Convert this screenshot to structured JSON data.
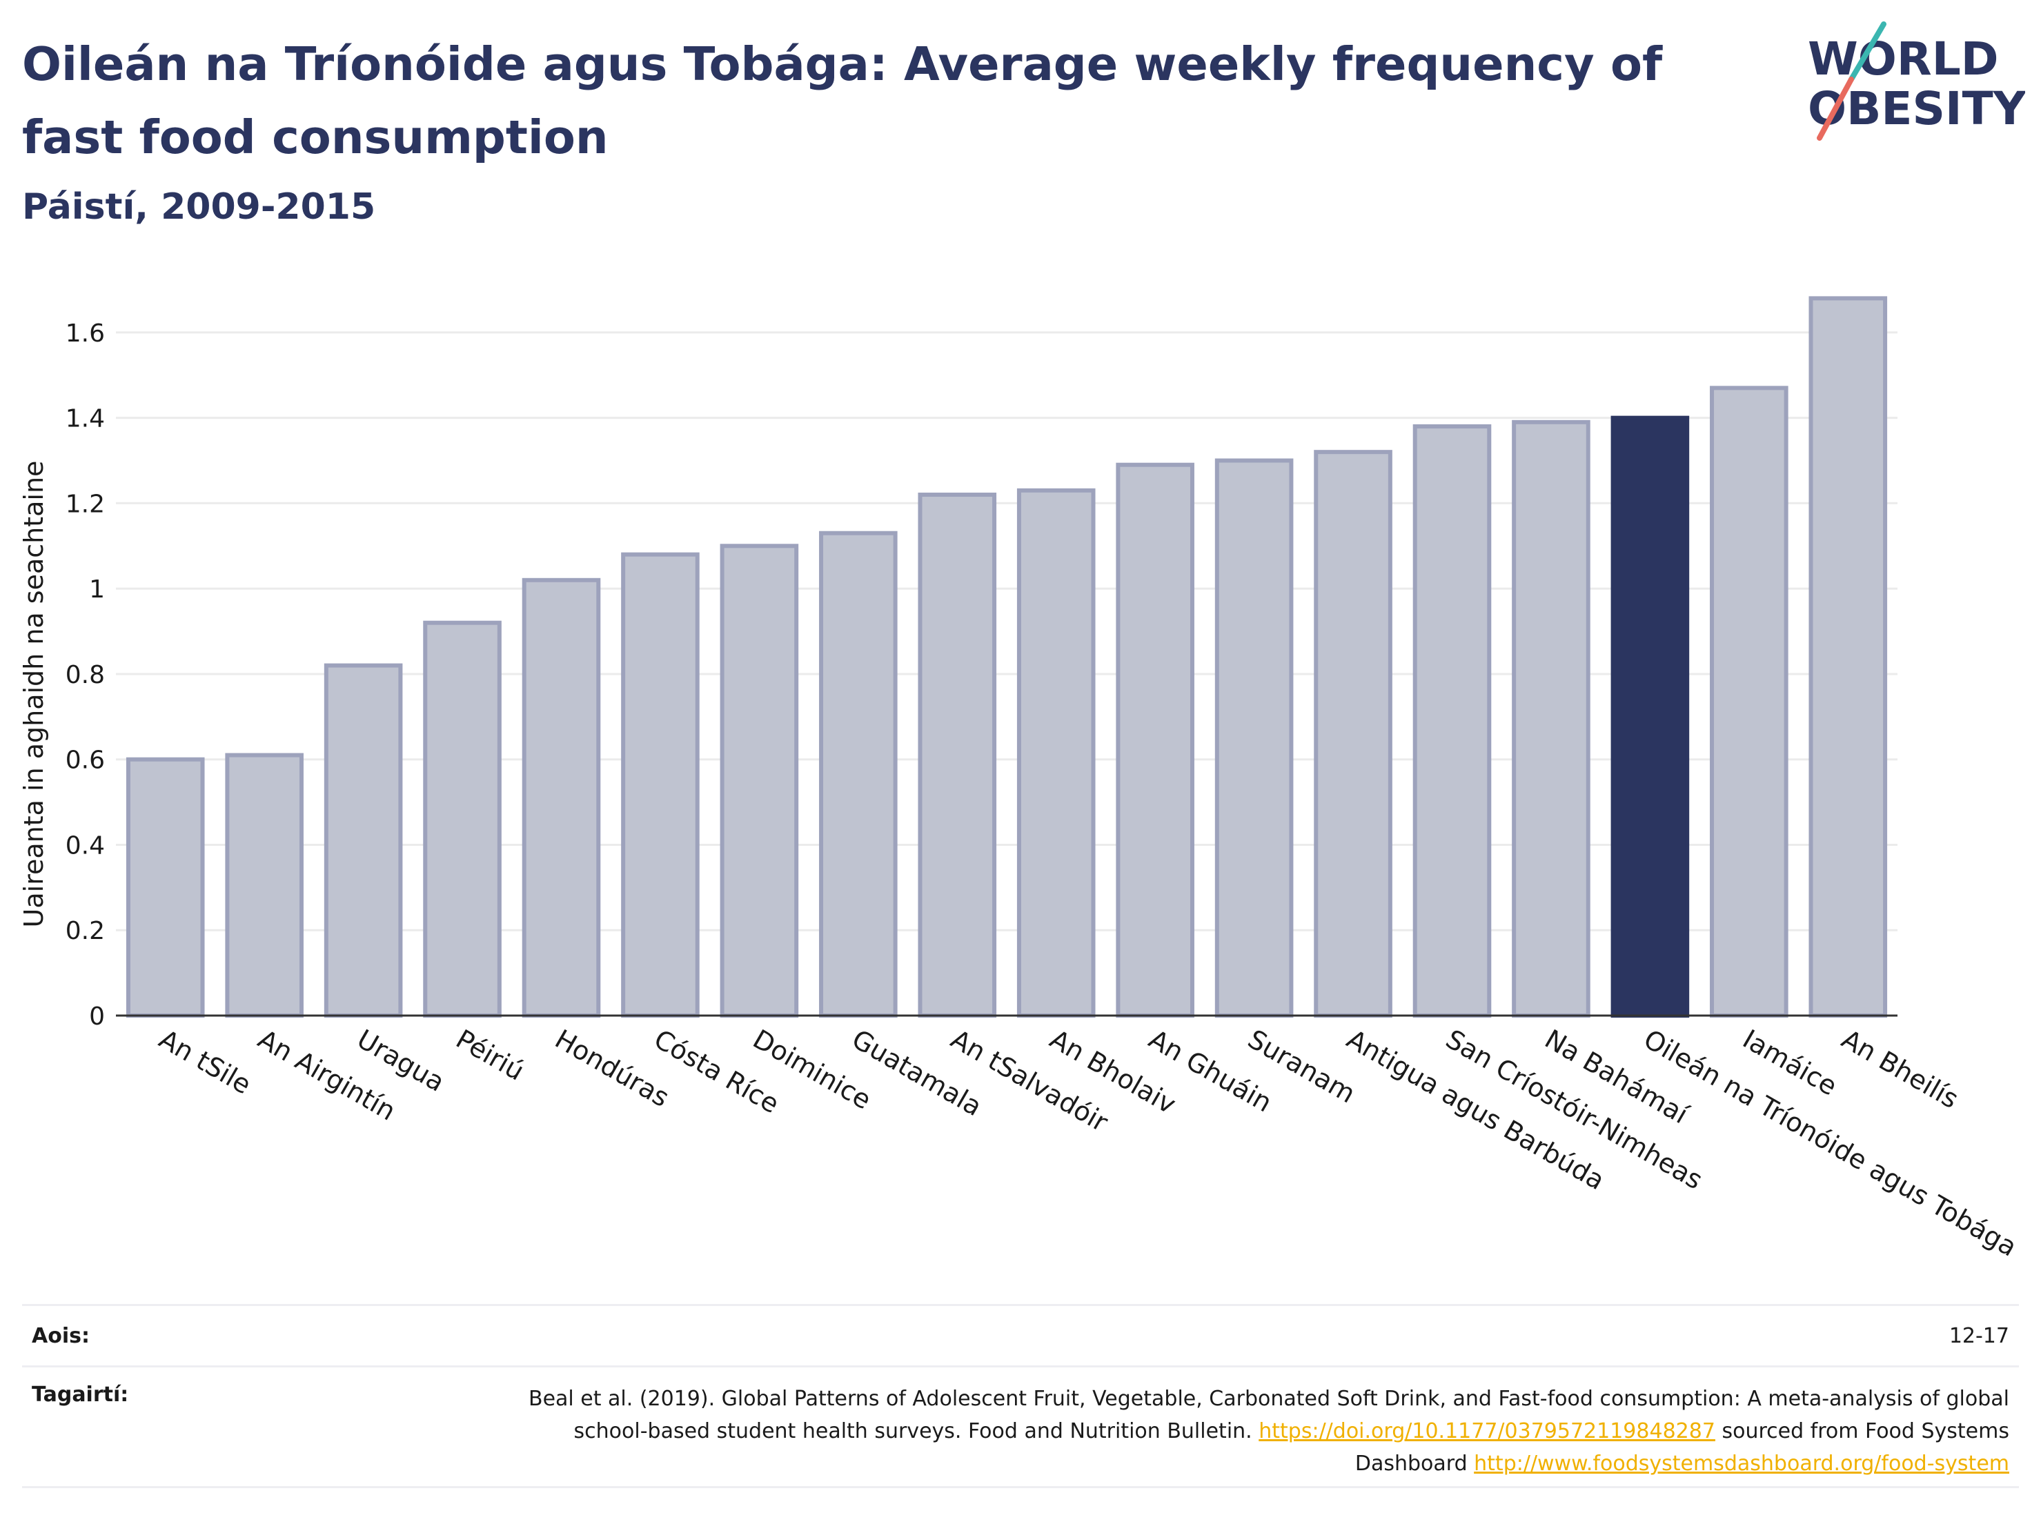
{
  "header": {
    "title": "Oileán na Tríonóide agus Tobága: Average weekly frequency of fast food consumption",
    "subtitle": "Páistí, 2009-2015"
  },
  "logo": {
    "line1": "WORLD",
    "line2": "OBESITY"
  },
  "chart_data": {
    "type": "bar",
    "title": "Oileán na Tríonóide agus Tobága: Average weekly frequency of fast food consumption",
    "subtitle": "Páistí, 2009-2015",
    "ylabel": "Uaireanta in aghaidh na seachtaine",
    "xlabel": "",
    "ylim": [
      0,
      1.7
    ],
    "yticks": [
      0,
      0.2,
      0.4,
      0.6,
      0.8,
      1,
      1.2,
      1.4,
      1.6
    ],
    "ytick_labels": [
      "0",
      "0.2",
      "0.4",
      "0.6",
      "0.8",
      "1",
      "1.2",
      "1.4",
      "1.6"
    ],
    "grid": true,
    "categories": [
      "An tSile",
      "An Airgintín",
      "Uragua",
      "Péiriú",
      "Hondúras",
      "Cósta Ríce",
      "Doiminice",
      "Guatamala",
      "An tSalvadóir",
      "An Bholaiv",
      "An Ghuáin",
      "Suranam",
      "Antigua agus Barbúda",
      "San Críostóir-Nimheas",
      "Na Bahámaí",
      "Oileán na Tríonóide agus Tobága",
      "Iamáice",
      "An Bheilís"
    ],
    "values": [
      0.6,
      0.61,
      0.82,
      0.92,
      1.02,
      1.08,
      1.1,
      1.13,
      1.22,
      1.23,
      1.29,
      1.3,
      1.32,
      1.38,
      1.39,
      1.4,
      1.47,
      1.68
    ],
    "highlight_index": 15,
    "colors": {
      "bar": "#bfc3d0",
      "bar_edge": "#9da2bc",
      "highlight": "#2b3560",
      "grid": "#ebebeb",
      "axis": "#333333"
    }
  },
  "footer": {
    "age_label": "Aois:",
    "age_value": "12-17",
    "ref_label": "Tagairtí:",
    "ref_text_1": "Beal et al. (2019). Global Patterns of Adolescent Fruit, Vegetable, Carbonated Soft Drink, and Fast-food consumption: A meta-analysis of global school-based student health surveys. Food and Nutrition Bulletin. ",
    "ref_link_1": "https://doi.org/10.1177/0379572119848287",
    "ref_text_2": " sourced from Food Systems Dashboard ",
    "ref_link_2": "http://www.foodsystemsdashboard.org/food-system"
  }
}
